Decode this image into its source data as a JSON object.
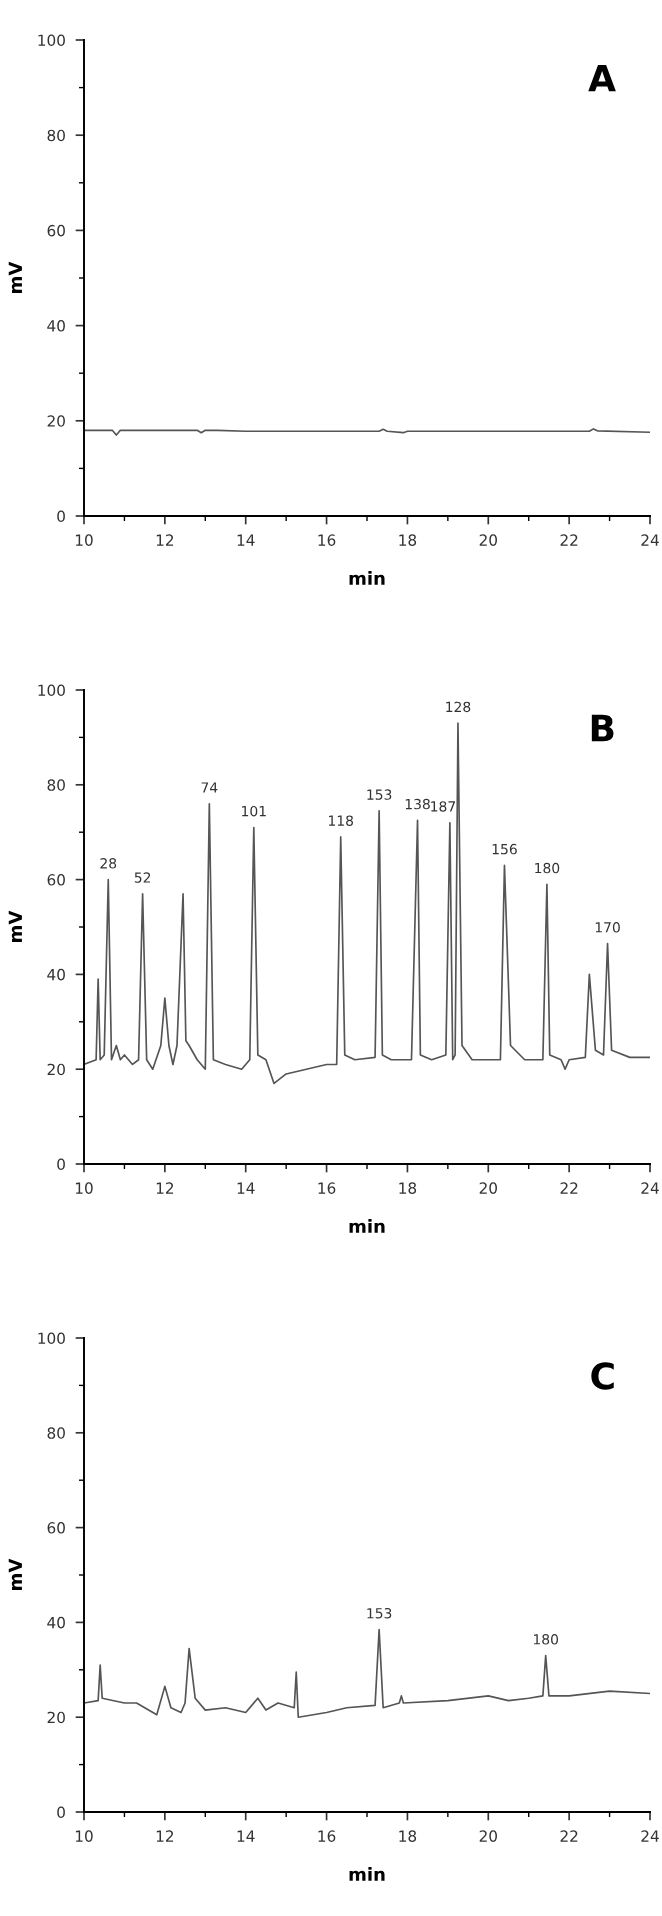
{
  "chart_data": [
    {
      "type": "line",
      "title": "A",
      "xlabel": "min",
      "ylabel": "mV",
      "xlim": [
        10,
        24
      ],
      "ylim": [
        0,
        100
      ],
      "xticks": [
        10,
        12,
        14,
        16,
        18,
        20,
        22,
        24
      ],
      "yticks": [
        0,
        20,
        40,
        60,
        80,
        100
      ],
      "grid": false,
      "legend": false,
      "series": [
        {
          "color": "#555555",
          "x": [
            10,
            10.7,
            10.8,
            10.9,
            12.8,
            12.9,
            13.0,
            13.3,
            14,
            17.3,
            17.4,
            17.5,
            17.9,
            18,
            22.5,
            22.6,
            22.7,
            24
          ],
          "values": [
            18,
            18,
            17,
            18,
            18,
            17.5,
            18,
            18,
            17.8,
            17.8,
            18.2,
            17.8,
            17.5,
            17.8,
            17.8,
            18.3,
            17.9,
            17.6
          ]
        }
      ]
    },
    {
      "type": "line",
      "title": "B",
      "xlabel": "min",
      "ylabel": "mV",
      "xlim": [
        10,
        24
      ],
      "ylim": [
        0,
        100
      ],
      "xticks": [
        10,
        12,
        14,
        16,
        18,
        20,
        22,
        24
      ],
      "yticks": [
        0,
        20,
        40,
        60,
        80,
        100
      ],
      "grid": false,
      "legend": false,
      "series": [
        {
          "color": "#555555",
          "x": [
            10,
            10.3,
            10.35,
            10.4,
            10.5,
            10.6,
            10.68,
            10.8,
            10.9,
            11.0,
            11.2,
            11.35,
            11.45,
            11.55,
            11.7,
            11.9,
            12.0,
            12.1,
            12.2,
            12.3,
            12.45,
            12.52,
            12.6,
            12.8,
            13.0,
            13.1,
            13.2,
            13.5,
            13.9,
            14.1,
            14.2,
            14.3,
            14.5,
            14.7,
            15.0,
            15.5,
            16.0,
            16.25,
            16.35,
            16.45,
            16.7,
            17.2,
            17.3,
            17.38,
            17.6,
            18.1,
            18.25,
            18.32,
            18.6,
            18.95,
            19.05,
            19.12,
            19.18,
            19.25,
            19.35,
            19.6,
            20.3,
            20.4,
            20.55,
            20.9,
            21.35,
            21.45,
            21.52,
            21.8,
            21.9,
            22.0,
            22.4,
            22.5,
            22.65,
            22.85,
            22.95,
            23.05,
            23.5,
            24
          ],
          "values": [
            21,
            22,
            39,
            22,
            23,
            60,
            22,
            25,
            22,
            23,
            21,
            22,
            57,
            22,
            20,
            25,
            35,
            25,
            21,
            25,
            57,
            26,
            25,
            22,
            20,
            76,
            22,
            21,
            20,
            22,
            71,
            23,
            22,
            17,
            19,
            20,
            21,
            21,
            69,
            23,
            22,
            22.5,
            74.5,
            23,
            22,
            22,
            72.5,
            23,
            22,
            23,
            72,
            22,
            23,
            93,
            25,
            22,
            22,
            63,
            25,
            22,
            22,
            59,
            23,
            22,
            20,
            22,
            22.5,
            40,
            24,
            23,
            46.5,
            24,
            22.5,
            22.5
          ]
        }
      ],
      "annotations": [
        {
          "text": "28",
          "x": 10.6,
          "y": 60
        },
        {
          "text": "52",
          "x": 11.45,
          "y": 57
        },
        {
          "text": "74",
          "x": 13.1,
          "y": 76
        },
        {
          "text": "101",
          "x": 14.2,
          "y": 71
        },
        {
          "text": "118",
          "x": 16.35,
          "y": 69
        },
        {
          "text": "153",
          "x": 17.3,
          "y": 74.5
        },
        {
          "text": "138",
          "x": 18.25,
          "y": 72.5
        },
        {
          "text": "187",
          "x": 19.05,
          "y": 72
        },
        {
          "text": "128",
          "x": 19.25,
          "y": 93
        },
        {
          "text": "156",
          "x": 20.4,
          "y": 63
        },
        {
          "text": "180",
          "x": 21.45,
          "y": 59
        },
        {
          "text": "170",
          "x": 22.95,
          "y": 46.5
        }
      ]
    },
    {
      "type": "line",
      "title": "C",
      "xlabel": "min",
      "ylabel": "mV",
      "xlim": [
        10,
        24
      ],
      "ylim": [
        0,
        100
      ],
      "xticks": [
        10,
        12,
        14,
        16,
        18,
        20,
        22,
        24
      ],
      "yticks": [
        0,
        20,
        40,
        60,
        80,
        100
      ],
      "grid": false,
      "legend": false,
      "series": [
        {
          "color": "#555555",
          "x": [
            10,
            10.35,
            10.4,
            10.45,
            11,
            11.3,
            11.8,
            12.0,
            12.15,
            12.4,
            12.5,
            12.6,
            12.75,
            13,
            13.5,
            14,
            14.3,
            14.5,
            14.8,
            15.2,
            15.25,
            15.3,
            16,
            16.5,
            17.2,
            17.3,
            17.4,
            17.8,
            17.85,
            17.9,
            19,
            20,
            20.5,
            21,
            21.35,
            21.42,
            21.5,
            22,
            23,
            24
          ],
          "values": [
            23,
            23.5,
            31,
            24,
            23,
            23,
            20.5,
            26.5,
            22,
            21,
            23,
            34.5,
            24,
            21.5,
            22,
            21,
            24,
            21.5,
            23,
            22,
            29.5,
            20,
            21,
            22,
            22.5,
            38.5,
            22,
            23,
            24.5,
            23,
            23.5,
            24.5,
            23.5,
            24,
            24.5,
            33,
            24.5,
            24.5,
            25.5,
            25
          ]
        }
      ],
      "annotations": [
        {
          "text": "153",
          "x": 17.3,
          "y": 38.5
        },
        {
          "text": "180",
          "x": 21.42,
          "y": 33
        }
      ]
    }
  ]
}
